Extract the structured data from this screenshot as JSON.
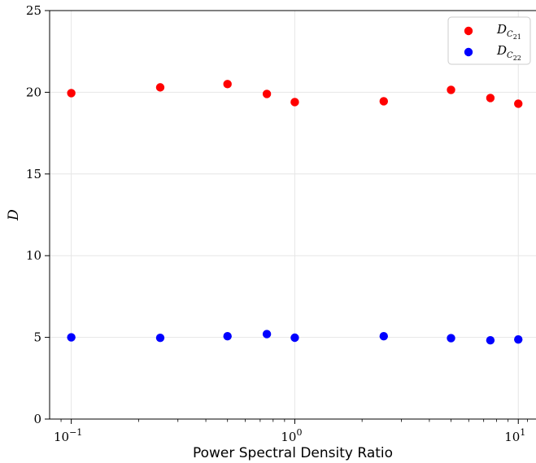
{
  "chart_data": {
    "type": "scatter",
    "xscale": "log",
    "xlabel": "Power Spectral Density Ratio",
    "ylabel": "D",
    "xlim": [
      0.08,
      12
    ],
    "ylim": [
      0,
      25
    ],
    "grid": true,
    "legend_position": "top-right",
    "xticks": [
      {
        "value": 0.1,
        "base": "10",
        "exp": "−1"
      },
      {
        "value": 1,
        "base": "10",
        "exp": "0"
      },
      {
        "value": 10,
        "base": "10",
        "exp": "1"
      }
    ],
    "yticks": [
      {
        "value": 0,
        "label": "0"
      },
      {
        "value": 5,
        "label": "5"
      },
      {
        "value": 10,
        "label": "10"
      },
      {
        "value": 15,
        "label": "15"
      },
      {
        "value": 20,
        "label": "20"
      },
      {
        "value": 25,
        "label": "25"
      }
    ],
    "series": [
      {
        "name": "D",
        "subscript": "C",
        "subsubscript": "21",
        "color": "#ff0000",
        "points": [
          {
            "x": 0.1,
            "y": 19.95
          },
          {
            "x": 0.25,
            "y": 20.3
          },
          {
            "x": 0.5,
            "y": 20.5
          },
          {
            "x": 0.75,
            "y": 19.9
          },
          {
            "x": 1.0,
            "y": 19.4
          },
          {
            "x": 2.5,
            "y": 19.45
          },
          {
            "x": 5.0,
            "y": 20.15
          },
          {
            "x": 7.5,
            "y": 19.65
          },
          {
            "x": 10.0,
            "y": 19.3
          }
        ]
      },
      {
        "name": "D",
        "subscript": "C",
        "subsubscript": "22",
        "color": "#0000ff",
        "points": [
          {
            "x": 0.1,
            "y": 5.0
          },
          {
            "x": 0.25,
            "y": 4.97
          },
          {
            "x": 0.5,
            "y": 5.07
          },
          {
            "x": 0.75,
            "y": 5.2
          },
          {
            "x": 1.0,
            "y": 4.98
          },
          {
            "x": 2.5,
            "y": 5.07
          },
          {
            "x": 5.0,
            "y": 4.95
          },
          {
            "x": 7.5,
            "y": 4.82
          },
          {
            "x": 10.0,
            "y": 4.87
          }
        ]
      }
    ]
  }
}
